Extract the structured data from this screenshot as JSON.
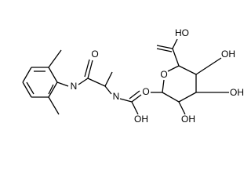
{
  "atoms": [
    {
      "label": "O"
    },
    {
      "label": "N"
    },
    {
      "label": "N"
    },
    {
      "label": "OH"
    },
    {
      "label": "O"
    },
    {
      "label": "O"
    },
    {
      "label": "HO"
    },
    {
      "label": "OH"
    },
    {
      "label": "OH"
    },
    {
      "label": "OH"
    }
  ]
}
